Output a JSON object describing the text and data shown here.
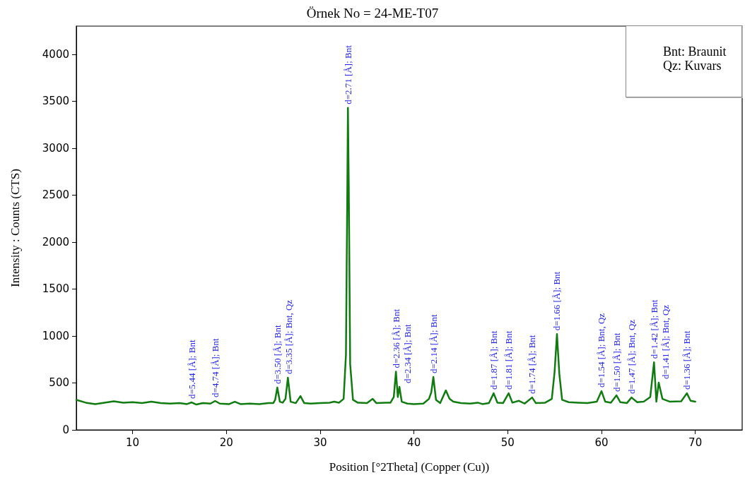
{
  "chart_data": {
    "type": "line",
    "title": "Örnek No = 24-ME-T07",
    "xlabel": "Position [°2Theta] (Copper (Cu))",
    "ylabel": "Intensity : Counts (CTS)",
    "xlim": [
      4,
      75
    ],
    "xticks": [
      10,
      20,
      30,
      40,
      50,
      60,
      70
    ],
    "ylim": [
      0,
      4300
    ],
    "yticks": [
      0,
      500,
      1000,
      1500,
      2000,
      2500,
      3000,
      3500,
      4000
    ],
    "grid": false,
    "marker": "none",
    "line_style": "solid",
    "series": [
      {
        "color": "#107c10",
        "x": [
          4,
          5,
          6,
          7,
          8,
          9,
          10,
          11,
          12,
          13,
          14,
          15,
          15.8,
          16.3,
          16.8,
          17.5,
          18.3,
          18.8,
          19.3,
          20.3,
          20.9,
          21.5,
          22.5,
          23.5,
          24.5,
          25.0,
          25.2,
          25.43,
          25.7,
          26.0,
          26.3,
          26.56,
          26.85,
          27.4,
          27.9,
          28.3,
          29,
          30,
          31,
          31.5,
          32.0,
          32.5,
          32.75,
          32.9,
          32.96,
          33.05,
          33.2,
          33.5,
          34,
          35,
          35.6,
          36,
          37,
          37.5,
          37.85,
          38.08,
          38.28,
          38.45,
          38.7,
          39.3,
          40,
          41,
          41.6,
          41.85,
          42.07,
          42.35,
          42.8,
          43.4,
          43.8,
          44.2,
          45,
          46,
          46.8,
          47.3,
          48,
          48.5,
          48.9,
          49.5,
          50.1,
          50.5,
          51.2,
          51.8,
          52.6,
          53,
          54,
          54.7,
          55.0,
          55.25,
          55.5,
          55.8,
          56.5,
          57.5,
          58.5,
          59.5,
          60.0,
          60.4,
          61.0,
          61.6,
          62,
          62.7,
          63.2,
          63.8,
          64.5,
          65.2,
          65.6,
          65.85,
          66.1,
          66.5,
          67.3,
          68.5,
          69.1,
          69.5,
          70
        ],
        "values": [
          320,
          290,
          275,
          290,
          305,
          290,
          295,
          285,
          300,
          285,
          280,
          285,
          275,
          293,
          270,
          285,
          280,
          308,
          280,
          275,
          300,
          275,
          280,
          275,
          285,
          285,
          320,
          451,
          300,
          290,
          330,
          556,
          300,
          285,
          360,
          285,
          280,
          285,
          290,
          300,
          290,
          330,
          800,
          2600,
          3430,
          2600,
          700,
          320,
          290,
          285,
          330,
          285,
          290,
          290,
          350,
          620,
          350,
          459,
          300,
          280,
          275,
          280,
          330,
          400,
          564,
          320,
          285,
          420,
          330,
          300,
          285,
          280,
          290,
          275,
          285,
          390,
          290,
          285,
          390,
          290,
          310,
          280,
          345,
          285,
          290,
          330,
          620,
          1020,
          600,
          320,
          295,
          290,
          285,
          300,
          413,
          300,
          290,
          368,
          295,
          285,
          345,
          295,
          300,
          350,
          720,
          300,
          503,
          330,
          300,
          305,
          390,
          310,
          300
        ]
      }
    ],
    "annotations": [
      {
        "text": "d=5.44 [Å]; Bnt",
        "x": 16.3,
        "y": 293
      },
      {
        "text": "d=4.74 [Å]; Bnt",
        "x": 18.8,
        "y": 308
      },
      {
        "text": "d=3.50 [Å]; Bnt",
        "x": 25.43,
        "y": 451
      },
      {
        "text": "d=3.35 [Å]; Bnt, Qz",
        "x": 26.56,
        "y": 556
      },
      {
        "text": "d=2.71 [Å]; Bnt",
        "x": 32.96,
        "y": 3430
      },
      {
        "text": "d=2.36 [Å]; Bnt",
        "x": 38.08,
        "y": 620
      },
      {
        "text": "d=2.34 [Å]; Bnt",
        "x": 38.45,
        "y": 459
      },
      {
        "text": "d=2.14 [Å]; Bnt",
        "x": 42.07,
        "y": 564
      },
      {
        "text": "d=1.87 [Å]; Bnt",
        "x": 48.5,
        "y": 390
      },
      {
        "text": "d=1.81 [Å]; Bnt",
        "x": 50.1,
        "y": 390
      },
      {
        "text": "d=1.74 [Å]; Bnt",
        "x": 52.6,
        "y": 345
      },
      {
        "text": "d=1.66 [Å]; Bnt",
        "x": 55.25,
        "y": 1020
      },
      {
        "text": "d=1.54 [Å]; Bnt, Qz",
        "x": 60.0,
        "y": 413
      },
      {
        "text": "d=1.50 [Å]; Bnt",
        "x": 61.6,
        "y": 368
      },
      {
        "text": "d=1.47 [Å]; Bnt, Qz",
        "x": 63.2,
        "y": 345
      },
      {
        "text": "d=1.42 [Å]; Bnt",
        "x": 65.6,
        "y": 720
      },
      {
        "text": "d=1.41 [Å]; Bnt, Qz",
        "x": 66.1,
        "y": 503
      },
      {
        "text": "d=1.36 [Å]; Bnt",
        "x": 69.1,
        "y": 390
      },
      "Bnt: Braunit",
      "Qz: Kuvars"
    ]
  }
}
